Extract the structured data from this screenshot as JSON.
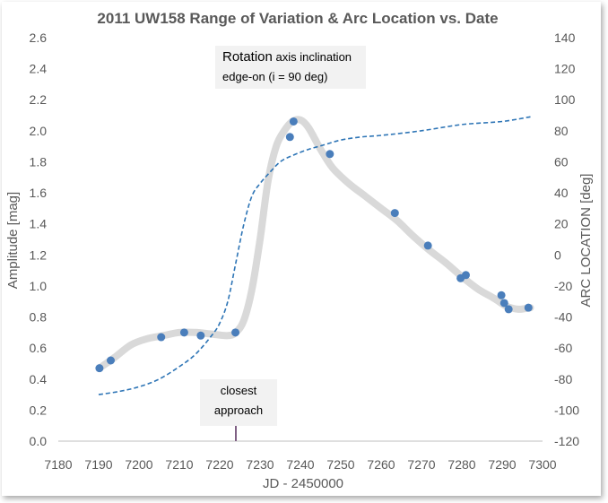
{
  "chart_data": {
    "type": "line",
    "title": "2011 UW158 Range of Variation  & Arc Location vs. Date",
    "xlabel": "JD - 2450000",
    "ylabel": "Amplitude [mag]",
    "y2label": "ARC LOCATION [deg]",
    "xlim": [
      7180,
      7300
    ],
    "ylim": [
      0,
      2.6
    ],
    "y2lim": [
      -120,
      140
    ],
    "xticks": [
      7180,
      7190,
      7200,
      7210,
      7220,
      7230,
      7240,
      7250,
      7260,
      7270,
      7280,
      7290,
      7300
    ],
    "yticks": [
      0.0,
      0.2,
      0.4,
      0.6,
      0.8,
      1.0,
      1.2,
      1.4,
      1.6,
      1.8,
      2.0,
      2.2,
      2.4,
      2.6
    ],
    "y2ticks": [
      -120,
      -100,
      -80,
      -60,
      -40,
      -20,
      0,
      20,
      40,
      60,
      80,
      100,
      120,
      140
    ],
    "ytick_labels": [
      "0.0",
      "0.2",
      "0.4",
      "0.6",
      "0.8",
      "1.0",
      "1.2",
      "1.4",
      "1.6",
      "1.8",
      "2.0",
      "2.2",
      "2.4",
      "2.6"
    ],
    "grid": false,
    "series": [
      {
        "kind": "scatter",
        "axis": "left",
        "color": "#4a7ebb",
        "x": [
          7190.2,
          7193.0,
          7205.5,
          7211.2,
          7215.3,
          7223.9,
          7237.4,
          7238.3,
          7247.3,
          7263.4,
          7271.6,
          7279.7,
          7281.0,
          7289.8,
          7290.5,
          7291.6,
          7296.5
        ],
        "y": [
          0.47,
          0.52,
          0.67,
          0.7,
          0.68,
          0.7,
          1.96,
          2.06,
          1.85,
          1.47,
          1.26,
          1.05,
          1.07,
          0.94,
          0.89,
          0.85,
          0.86
        ]
      },
      {
        "kind": "trend",
        "axis": "left",
        "color": "#d9d9d9",
        "x": [
          7190.2,
          7194,
          7198,
          7202,
          7206,
          7210,
          7214,
          7218,
          7222,
          7224,
          7226,
          7228,
          7230,
          7232,
          7234,
          7236,
          7238,
          7240,
          7242,
          7245,
          7248,
          7252,
          7256,
          7260,
          7264,
          7268,
          7272,
          7276,
          7280,
          7284,
          7288,
          7291,
          7294,
          7297
        ],
        "y": [
          0.47,
          0.54,
          0.62,
          0.66,
          0.68,
          0.7,
          0.7,
          0.69,
          0.68,
          0.7,
          0.78,
          0.98,
          1.3,
          1.68,
          1.9,
          2.0,
          2.06,
          2.07,
          2.02,
          1.88,
          1.76,
          1.66,
          1.58,
          1.5,
          1.42,
          1.32,
          1.23,
          1.15,
          1.06,
          0.98,
          0.92,
          0.87,
          0.85,
          0.86
        ]
      },
      {
        "kind": "dashed",
        "axis": "right",
        "color": "#2e75b6",
        "x": [
          7190,
          7195,
          7200,
          7205,
          7210,
          7214,
          7218,
          7220,
          7222,
          7224,
          7226,
          7228,
          7230,
          7232,
          7235,
          7238,
          7242,
          7246,
          7250,
          7255,
          7260,
          7270,
          7280,
          7290,
          7297
        ],
        "y": [
          -90,
          -88,
          -85,
          -80,
          -72,
          -64,
          -52,
          -44,
          -30,
          -5,
          20,
          38,
          46,
          52,
          60,
          64,
          68,
          71,
          74,
          76,
          77,
          80,
          84,
          86,
          89
        ]
      }
    ],
    "annotations": {
      "rotation_big": "Rotation",
      "rotation_rest": " axis inclination",
      "rotation_line2": "edge-on (i = 90 deg)",
      "closest_line1": "closest",
      "closest_line2": "approach",
      "closest_x": 7224
    }
  }
}
